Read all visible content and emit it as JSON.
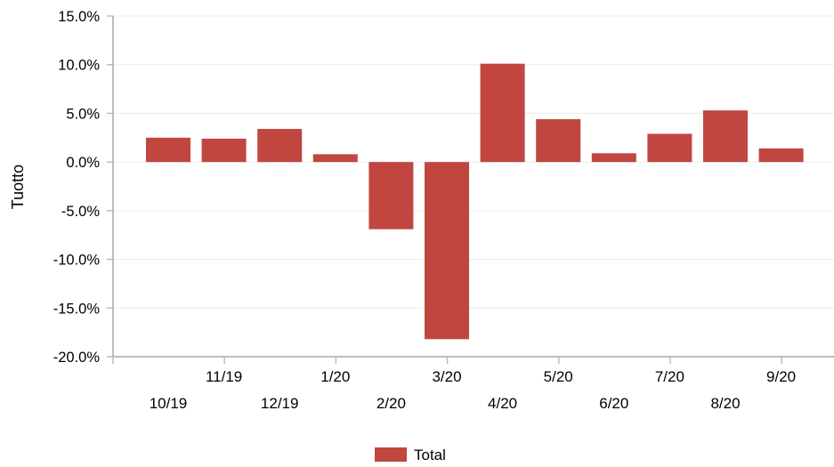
{
  "chart_data": {
    "type": "bar",
    "ylabel": "Tuotto",
    "xlabel": "",
    "categories": [
      "10/19",
      "11/19",
      "12/19",
      "1/20",
      "2/20",
      "3/20",
      "4/20",
      "5/20",
      "6/20",
      "7/20",
      "8/20",
      "9/20"
    ],
    "series": [
      {
        "name": "Total",
        "color": "#c0463f",
        "values": [
          2.5,
          2.4,
          3.4,
          0.8,
          -6.9,
          -18.2,
          10.1,
          4.4,
          0.9,
          2.9,
          5.3,
          1.4
        ]
      }
    ],
    "ylim": [
      -20,
      15
    ],
    "yticks": [
      15,
      10,
      5,
      0,
      -5,
      -10,
      -15,
      -20
    ],
    "ytick_labels": [
      "15.0%",
      "10.0%",
      "5.0%",
      "0.0%",
      "-5.0%",
      "-10.0%",
      "-15.0%",
      "-20.0%"
    ],
    "grid": true,
    "legend_position": "bottom-center"
  }
}
